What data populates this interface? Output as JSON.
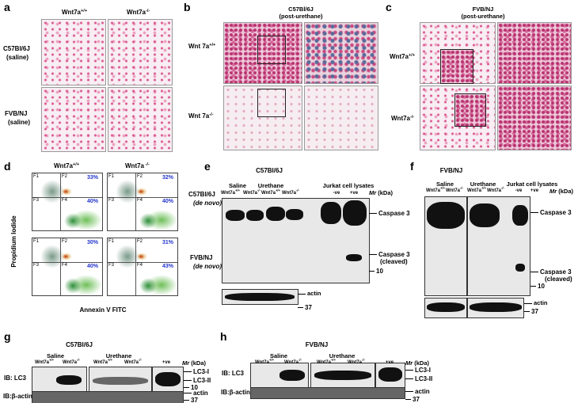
{
  "panels": {
    "a": {
      "label": "a",
      "columns": [
        {
          "base": "Wnt7a",
          "sup": "+/+"
        },
        {
          "base": "Wnt7a",
          "sup": "-/-"
        }
      ],
      "rows": [
        [
          "C57Bl/6J",
          "(saline)"
        ],
        [
          "FVB/NJ",
          "(saline)"
        ]
      ]
    },
    "b": {
      "label": "b",
      "title": [
        "C57Bl/6J",
        "(post-urethane)"
      ],
      "rows": [
        {
          "base": "Wnt 7a",
          "sup": "+/+"
        },
        {
          "base": "Wnt 7a",
          "sup": "-/-"
        }
      ]
    },
    "c": {
      "label": "c",
      "title": [
        "FVB/NJ",
        "(post-urethane)"
      ],
      "rows": [
        {
          "base": "Wnt7a",
          "sup": "+/+"
        },
        {
          "base": "Wnt7a",
          "sup": "-/-"
        }
      ]
    },
    "d": {
      "label": "d",
      "columns": [
        {
          "base": "Wnt7a",
          "sup": "+/+"
        },
        {
          "base": "Wnt7a",
          "sup": " -/-"
        }
      ],
      "rows": [
        [
          "C57Bl/6J",
          "(de novo)"
        ],
        [
          "FVB/NJ",
          "(de novo)"
        ]
      ],
      "y_axis": "Propidium Iodide",
      "x_axis": "Annexin V FITC",
      "quadrants": [
        "F1",
        "F2",
        "F3",
        "F4"
      ],
      "percentages": [
        [
          "33%",
          "40%"
        ],
        [
          "32%",
          "40%"
        ],
        [
          "30%",
          "40%"
        ],
        [
          "31%",
          "43%"
        ]
      ]
    },
    "e": {
      "label": "e",
      "title": "C57Bl/6J",
      "groups": [
        "Saline",
        "Urethane",
        "Jurkat cell lysates"
      ],
      "lanes": [
        {
          "base": "Wnt7a",
          "sup": "+/+"
        },
        {
          "base": "Wnt7a",
          "sup": "-/-"
        },
        {
          "base": "Wnt7a",
          "sup": "+/+"
        },
        {
          "base": "Wnt7a",
          "sup": "-/-"
        },
        {
          "base": "-ve"
        },
        {
          "base": "+ve"
        }
      ],
      "mr": {
        "base": "Mr",
        "unit": "(kDa)"
      },
      "bands": [
        "Caspase 3",
        [
          "Caspase 3",
          "(cleaved)"
        ]
      ],
      "markers": [
        "10",
        "37"
      ],
      "loading": "actin"
    },
    "f": {
      "label": "f",
      "title": "FVB/NJ",
      "groups": [
        "Saline",
        "Urethane",
        "Jurkat cell lysates"
      ],
      "lanes": [
        {
          "base": "Wnt7a",
          "sup": "+/+"
        },
        {
          "base": "Wnt7a",
          "sup": "-/-"
        },
        {
          "base": "Wnt7a",
          "sup": "+/+"
        },
        {
          "base": "Wnt7a",
          "sup": "-/-"
        },
        {
          "base": "-ve"
        },
        {
          "base": "+ve"
        }
      ],
      "mr": {
        "base": "Mr",
        "unit": "(kDa)"
      },
      "bands": [
        "Caspase 3",
        [
          "Caspase 3",
          "(cleaved)"
        ]
      ],
      "markers": [
        "10",
        "37"
      ],
      "loading": "actin"
    },
    "g": {
      "label": "g",
      "title": "C57Bl/6J",
      "groups": [
        "Saline",
        "Urethane"
      ],
      "lanes": [
        {
          "base": "Wnt7a",
          "sup": "+/+"
        },
        {
          "base": "Wnt7a",
          "sup": "-/-"
        },
        {
          "base": "Wnt7a",
          "sup": "+/+"
        },
        {
          "base": "Wnt7a",
          "sup": "-/-"
        },
        {
          "base": "+ve"
        }
      ],
      "mr": {
        "base": "Mr",
        "unit": "(kDa)"
      },
      "blots": [
        "IB: LC3",
        "IB:β-actin"
      ],
      "bands": [
        "LC3-I",
        "LC3-II",
        "actin"
      ],
      "markers": [
        "10",
        "37"
      ]
    },
    "h": {
      "label": "h",
      "title": "FVB/NJ",
      "groups": [
        "Saline",
        "Urethane"
      ],
      "lanes": [
        {
          "base": "Wnt7a",
          "sup": "+/+"
        },
        {
          "base": "Wnt7a",
          "sup": "-/-"
        },
        {
          "base": "Wnt7a",
          "sup": "+/+"
        },
        {
          "base": "Wnt7a",
          "sup": "-/-"
        },
        {
          "base": "+ve"
        }
      ],
      "mr": {
        "base": "Mr",
        "unit": "(kDa)"
      },
      "blots": [
        "IB: LC3",
        "IB:β-actin"
      ],
      "bands": [
        "LC3-I",
        "LC3-II",
        "actin"
      ],
      "markers": [
        "37"
      ]
    }
  }
}
